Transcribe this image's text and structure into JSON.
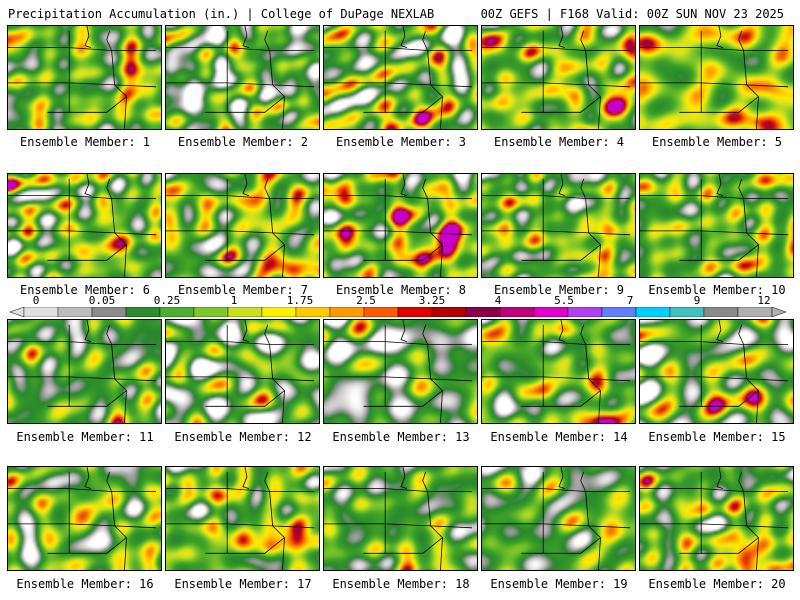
{
  "header": {
    "left_title": "Precipitation Accumulation (in.) | College of DuPage NEXLAB",
    "right_title": "00Z GEFS | F168 Valid: 00Z SUN NOV 23 2025"
  },
  "legend": {
    "tick_labels": [
      "0",
      "0.05",
      "0.25",
      "1",
      "1.75",
      "2.5",
      "3.25",
      "4",
      "5.5",
      "7",
      "9",
      "12"
    ],
    "colors": [
      "#e0e0e0",
      "#bdbdbd",
      "#8c8c8c",
      "#2e8b2e",
      "#4caf30",
      "#7cc828",
      "#c8e020",
      "#fff000",
      "#ffc800",
      "#ff9a00",
      "#ff5a00",
      "#e00000",
      "#b40000",
      "#8c004a",
      "#c0007a",
      "#e000c8",
      "#b040f0",
      "#6080ff",
      "#00d0ff",
      "#40c0c0",
      "#8a8a8a",
      "#b0b0b0"
    ]
  },
  "panels": [
    {
      "label": "Ensemble Member: 1",
      "moisture": 0.55
    },
    {
      "label": "Ensemble Member: 2",
      "moisture": 0.4
    },
    {
      "label": "Ensemble Member: 3",
      "moisture": 0.5
    },
    {
      "label": "Ensemble Member: 4",
      "moisture": 0.65
    },
    {
      "label": "Ensemble Member: 5",
      "moisture": 0.7
    },
    {
      "label": "Ensemble Member: 6",
      "moisture": 0.55
    },
    {
      "label": "Ensemble Member: 7",
      "moisture": 0.6
    },
    {
      "label": "Ensemble Member: 8",
      "moisture": 0.62
    },
    {
      "label": "Ensemble Member: 9",
      "moisture": 0.5
    },
    {
      "label": "Ensemble Member: 10",
      "moisture": 0.58
    },
    {
      "label": "Ensemble Member: 11",
      "moisture": 0.45
    },
    {
      "label": "Ensemble Member: 12",
      "moisture": 0.38
    },
    {
      "label": "Ensemble Member: 13",
      "moisture": 0.35
    },
    {
      "label": "Ensemble Member: 14",
      "moisture": 0.55
    },
    {
      "label": "Ensemble Member: 15",
      "moisture": 0.45
    },
    {
      "label": "Ensemble Member: 16",
      "moisture": 0.55
    },
    {
      "label": "Ensemble Member: 17",
      "moisture": 0.62
    },
    {
      "label": "Ensemble Member: 18",
      "moisture": 0.48
    },
    {
      "label": "Ensemble Member: 19",
      "moisture": 0.45
    },
    {
      "label": "Ensemble Member: 20",
      "moisture": 0.55
    }
  ]
}
